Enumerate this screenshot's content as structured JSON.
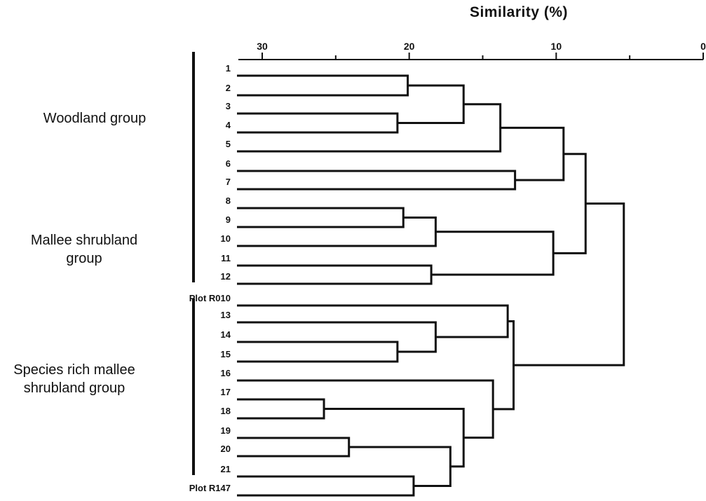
{
  "chart_data": {
    "type": "dendrogram",
    "orientation": "horizontal",
    "xlabel": "Similarity (%)",
    "x_axis": {
      "reversed": true,
      "ticks": [
        30,
        20,
        10,
        0
      ],
      "minor_ticks": [
        25,
        15,
        5
      ],
      "range": [
        32,
        0
      ]
    },
    "leaves": [
      "1",
      "2",
      "3",
      "4",
      "5",
      "6",
      "7",
      "8",
      "9",
      "10",
      "11",
      "12",
      "Plot R010",
      "13",
      "14",
      "15",
      "16",
      "17",
      "18",
      "19",
      "20",
      "21",
      "Plot R147"
    ],
    "merges": [
      {
        "a": "1",
        "b": "2",
        "similarity": 20.1
      },
      {
        "a": "3",
        "b": "4",
        "similarity": 20.8
      },
      {
        "a": "1-2",
        "b": "3-4",
        "similarity": 16.3
      },
      {
        "a": "1-4",
        "b": "5",
        "similarity": 13.8
      },
      {
        "a": "6",
        "b": "7",
        "similarity": 12.8
      },
      {
        "a": "1-5",
        "b": "6-7",
        "similarity": 9.5
      },
      {
        "a": "8",
        "b": "9",
        "similarity": 20.4
      },
      {
        "a": "8-9",
        "b": "10",
        "similarity": 18.2
      },
      {
        "a": "11",
        "b": "12",
        "similarity": 18.5
      },
      {
        "a": "8-10",
        "b": "11-12",
        "similarity": 10.2
      },
      {
        "a": "1-7",
        "b": "8-12",
        "similarity": 8.0
      },
      {
        "a": "14",
        "b": "15",
        "similarity": 20.8
      },
      {
        "a": "13",
        "b": "14-15",
        "similarity": 18.2
      },
      {
        "a": "Plot R010",
        "b": "13-15",
        "similarity": 13.3
      },
      {
        "a": "17",
        "b": "18",
        "similarity": 25.8
      },
      {
        "a": "19",
        "b": "20",
        "similarity": 24.1
      },
      {
        "a": "21",
        "b": "Plot R147",
        "similarity": 19.7
      },
      {
        "a": "19-20",
        "b": "21-R147",
        "similarity": 17.2
      },
      {
        "a": "17-18",
        "b": "19-R147",
        "similarity": 16.3
      },
      {
        "a": "16",
        "b": "17-R147",
        "similarity": 14.3
      },
      {
        "a": "R010-15",
        "b": "16-R147",
        "similarity": 12.9
      },
      {
        "a": "1-12",
        "b": "R010-R147",
        "similarity": 5.4
      }
    ],
    "groups": [
      {
        "label": "Woodland group",
        "members": [
          "1",
          "2",
          "3",
          "4",
          "5",
          "6",
          "7"
        ]
      },
      {
        "label": "Mallee shrubland group",
        "members": [
          "8",
          "9",
          "10",
          "11",
          "12"
        ]
      },
      {
        "label": "Species rich mallee shrubland group",
        "members": [
          "13",
          "14",
          "15",
          "16",
          "17",
          "18",
          "19",
          "20",
          "21"
        ]
      }
    ]
  },
  "labels": {
    "axis_title": "Similarity (%)",
    "group_woodland": [
      "Woodland group"
    ],
    "group_mallee": [
      "Mallee shrubland",
      "group"
    ],
    "group_species_rich": [
      "Species rich mallee",
      "shrubland group"
    ]
  }
}
